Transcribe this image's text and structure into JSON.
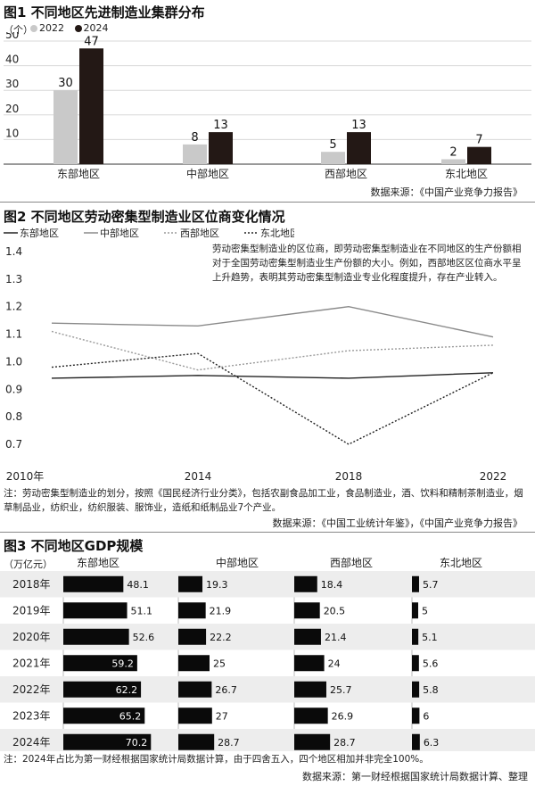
{
  "chart_data": [
    {
      "type": "bar",
      "title": "图1 不同地区先进制造业集群分布",
      "ylabel": "（个）",
      "categories": [
        "东部地区",
        "中部地区",
        "西部地区",
        "东北地区"
      ],
      "series": [
        {
          "name": "2022",
          "values": [
            30,
            8,
            5,
            2
          ],
          "color": "#c9c9c9"
        },
        {
          "name": "2024",
          "values": [
            47,
            13,
            13,
            7
          ],
          "color": "#231815"
        }
      ],
      "yticks": [
        10,
        20,
        30,
        40,
        50
      ],
      "ylim": [
        0,
        50
      ],
      "source": "数据来源：《中国产业竞争力报告》"
    },
    {
      "type": "line",
      "title": "图2 不同地区劳动密集型制造业区位商变化情况",
      "x": [
        "2010年",
        "2014",
        "2018",
        "2022"
      ],
      "yticks": [
        "0.7",
        "0.8",
        "0.9",
        "1.0",
        "1.1",
        "1.2",
        "1.3",
        "1.4"
      ],
      "ylim": [
        0.7,
        1.4
      ],
      "series": [
        {
          "name": "东部地区",
          "values": [
            0.94,
            0.95,
            0.94,
            0.96
          ],
          "color": "#222222",
          "dash": ""
        },
        {
          "name": "中部地区",
          "values": [
            1.14,
            1.13,
            1.2,
            1.09
          ],
          "color": "#8a8a8a",
          "dash": ""
        },
        {
          "name": "西部地区",
          "values": [
            1.11,
            0.97,
            1.04,
            1.06
          ],
          "color": "#9a9a9a",
          "dash": "2,2"
        },
        {
          "name": "东北地区",
          "values": [
            0.98,
            1.03,
            0.7,
            0.96
          ],
          "color": "#222222",
          "dash": "2,2"
        }
      ],
      "annotation": "劳动密集型制造业的区位商，即劳动密集型制造业在不同地区的生产份额相对于全国劳动密集型制造业生产份额的大小。例如，西部地区区位商水平呈上升趋势，表明其劳动密集型制造业专业化程度提升，存在产业转入。",
      "note": "注：劳动密集型制造业的划分，按照《国民经济行业分类》，包括农副食品加工业，食品制造业，酒、饮料和精制茶制造业，烟草制品业，纺织业，纺织服装、服饰业，造纸和纸制品业7个产业。",
      "source": "数据来源：《中国工业统计年鉴》，《中国产业竞争力报告》"
    },
    {
      "type": "bar",
      "title": "图3 不同地区GDP规模",
      "unit": "（万亿元）",
      "categories": [
        "2018年",
        "2019年",
        "2020年",
        "2021年",
        "2022年",
        "2023年",
        "2024年"
      ],
      "series": [
        {
          "name": "东部地区",
          "values": [
            48.1,
            51.1,
            52.6,
            59.2,
            62.2,
            65.2,
            70.2
          ]
        },
        {
          "name": "中部地区",
          "values": [
            19.3,
            21.9,
            22.2,
            25,
            26.7,
            27,
            28.7
          ]
        },
        {
          "name": "西部地区",
          "values": [
            18.4,
            20.5,
            21.4,
            24,
            25.7,
            26.9,
            28.7
          ]
        },
        {
          "name": "东北地区",
          "values": [
            5.7,
            5,
            5.1,
            5.6,
            5.8,
            6,
            6.3
          ]
        }
      ],
      "value_labels": [
        [
          "48.1",
          "51.1",
          "52.6",
          "59.2",
          "62.2",
          "65.2",
          "70.2"
        ],
        [
          "19.3",
          "21.9",
          "22.2",
          "25",
          "26.7",
          "27",
          "28.7"
        ],
        [
          "18.4",
          "20.5",
          "21.4",
          "24",
          "25.7",
          "26.9",
          "28.7"
        ],
        [
          "5.7",
          "5",
          "5.1",
          "5.6",
          "5.8",
          "6",
          "6.3"
        ]
      ],
      "note": "注：2024年占比为第一财经根据国家统计局数据计算，由于四舍五入，四个地区相加并非完全100%。",
      "source": "数据来源：第一财经根据国家统计局数据计算、整理"
    }
  ]
}
